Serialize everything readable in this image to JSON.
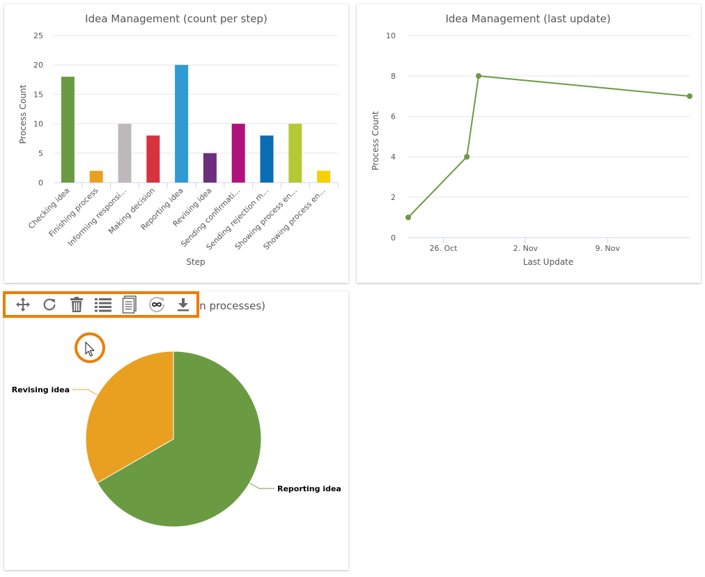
{
  "colors": {
    "accent_orange": "#ef7d00",
    "icon_gray": "#666666",
    "line_green": "#6a9b43"
  },
  "toolbar": {
    "buttons": [
      {
        "name": "move",
        "icon": "move-arrows-icon"
      },
      {
        "name": "refresh",
        "icon": "refresh-icon"
      },
      {
        "name": "delete",
        "icon": "trash-icon"
      },
      {
        "name": "list",
        "icon": "list-icon"
      },
      {
        "name": "document",
        "icon": "document-icon"
      },
      {
        "name": "infinite",
        "icon": "infinity-icon"
      },
      {
        "name": "download",
        "icon": "download-icon"
      }
    ]
  },
  "chart_data": [
    {
      "type": "bar",
      "title": "Idea Management (count per step)",
      "xlabel": "Step",
      "ylabel": "Process Count",
      "ylim": [
        0,
        25
      ],
      "yticks": [
        "0",
        "5",
        "10",
        "15",
        "20",
        "25"
      ],
      "categories": [
        "Checking idea",
        "Finishing process",
        "Informing responsi...",
        "Making decision",
        "Reporting idea",
        "Revising idea",
        "Sending confirmati...",
        "Sending rejection m...",
        "Showing process en...",
        "Showing process en..."
      ],
      "values": [
        18,
        2,
        10,
        8,
        20,
        5,
        10,
        8,
        10,
        2
      ],
      "colors": [
        "#6a9b43",
        "#e9a020",
        "#bdb8bc",
        "#d6333f",
        "#2f9bd4",
        "#6b2f7e",
        "#b0127d",
        "#0b6db4",
        "#b5c934",
        "#f6d000"
      ],
      "grid": true
    },
    {
      "type": "line",
      "title": "Idea Management (last update)",
      "xlabel": "Last Update",
      "ylabel": "Process Count",
      "ylim": [
        0,
        10
      ],
      "yticks": [
        "0",
        "2",
        "4",
        "6",
        "8",
        "10"
      ],
      "xrange_days": [
        0,
        24
      ],
      "xticks": [
        {
          "label": "26. Oct",
          "day": 3
        },
        {
          "label": "2. Nov",
          "day": 10
        },
        {
          "label": "9. Nov",
          "day": 17
        }
      ],
      "series": [
        {
          "name": "Process Count",
          "points": [
            [
              0,
              1
            ],
            [
              5,
              4
            ],
            [
              6,
              8
            ],
            [
              24,
              7
            ]
          ]
        }
      ],
      "grid": true
    },
    {
      "type": "pie",
      "title": "(... processes)",
      "title_visible_fragment": "n processes)",
      "slices": [
        {
          "label": "Reporting idea",
          "value": 2,
          "color": "#6a9b43"
        },
        {
          "label": "Revising idea",
          "value": 1,
          "color": "#e9a020"
        }
      ]
    }
  ]
}
